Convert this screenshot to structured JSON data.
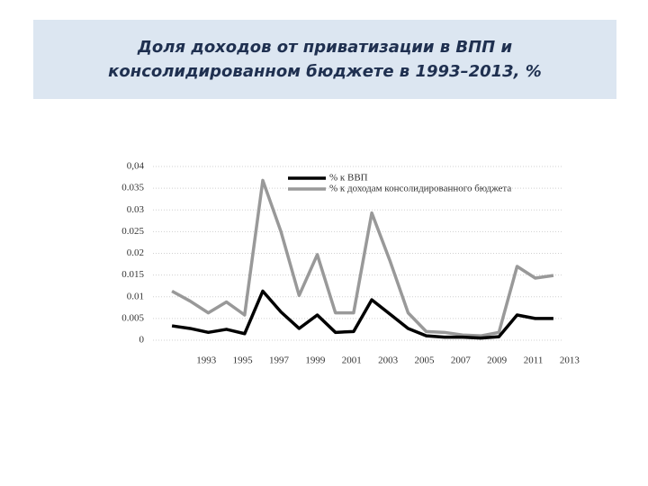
{
  "chart_data": {
    "type": "line",
    "title": "Доля доходов от приватизации в ВПП и консолидированном бюджете в 1993–2013, %",
    "x": [
      1992,
      1993,
      1994,
      1995,
      1996,
      1997,
      1998,
      1999,
      2000,
      2001,
      2002,
      2003,
      2004,
      2005,
      2006,
      2007,
      2008,
      2009,
      2010,
      2011,
      2012,
      2013
    ],
    "series": [
      {
        "name": "% к ВВП",
        "color": "#000000",
        "values": [
          0.0033,
          0.0027,
          0.0018,
          0.0025,
          0.0015,
          0.0113,
          0.0065,
          0.0027,
          0.0058,
          0.0018,
          0.002,
          0.0093,
          0.006,
          0.0027,
          0.001,
          0.0007,
          0.0007,
          0.0005,
          0.0008,
          0.0058,
          0.005,
          0.005
        ]
      },
      {
        "name": "% к доходам консолидированного бюджета",
        "color": "#999999",
        "values": [
          0.0113,
          0.009,
          0.0063,
          0.0088,
          0.0058,
          0.0368,
          0.025,
          0.0103,
          0.0197,
          0.0063,
          0.0063,
          0.0293,
          0.0183,
          0.0063,
          0.002,
          0.0018,
          0.0012,
          0.001,
          0.0018,
          0.017,
          0.0143,
          0.0149
        ]
      }
    ],
    "xlim": [
      1991.5,
      2013.5
    ],
    "xticks": [
      1993,
      1995,
      1997,
      1999,
      2001,
      2003,
      2005,
      2007,
      2009,
      2011,
      2013
    ],
    "ylim": [
      0,
      0.04
    ],
    "yticks": [
      0,
      0.005,
      0.01,
      0.015,
      0.02,
      0.025,
      0.03,
      0.035,
      {
        "value": 0.04,
        "label": "0,04"
      }
    ],
    "grid": true,
    "legend": "top"
  }
}
